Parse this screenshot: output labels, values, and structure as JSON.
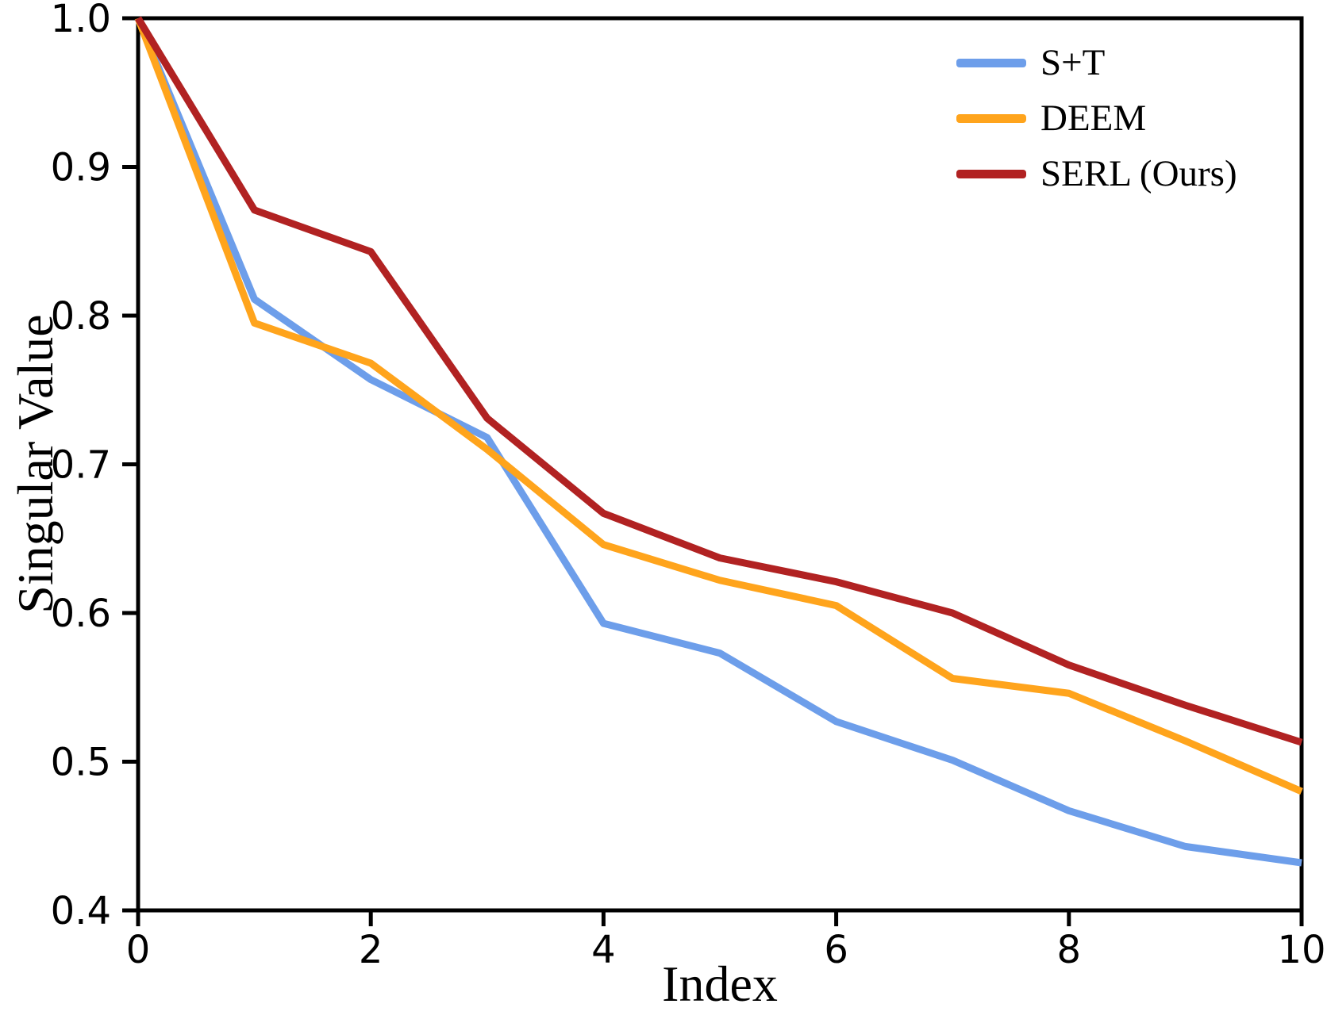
{
  "chart_data": {
    "type": "line",
    "title": "",
    "xlabel": "Index",
    "ylabel": "Singular Value",
    "x": [
      0,
      1,
      2,
      3,
      4,
      5,
      6,
      7,
      8,
      9,
      10
    ],
    "series": [
      {
        "name": "S+T",
        "color": "#6D9EEA",
        "values": [
          1.0,
          0.811,
          0.757,
          0.718,
          0.593,
          0.573,
          0.527,
          0.501,
          0.467,
          0.443,
          0.432
        ]
      },
      {
        "name": "DEEM",
        "color": "#FFA41C",
        "values": [
          1.0,
          0.795,
          0.768,
          0.71,
          0.646,
          0.622,
          0.605,
          0.556,
          0.546,
          0.514,
          0.48
        ]
      },
      {
        "name": "SERL (Ours)",
        "color": "#B12222",
        "values": [
          1.0,
          0.871,
          0.843,
          0.731,
          0.667,
          0.637,
          0.621,
          0.6,
          0.565,
          0.538,
          0.513
        ]
      }
    ],
    "xlim": [
      0,
      10
    ],
    "ylim": [
      0.4,
      1.0
    ],
    "xticks": [
      0,
      2,
      4,
      6,
      8,
      10
    ],
    "yticks": [
      0.4,
      0.5,
      0.6,
      0.7,
      0.8,
      0.9,
      1.0
    ],
    "grid": false,
    "legend_position": "upper right",
    "axis_color": "#000000",
    "background_color": "#ffffff"
  }
}
